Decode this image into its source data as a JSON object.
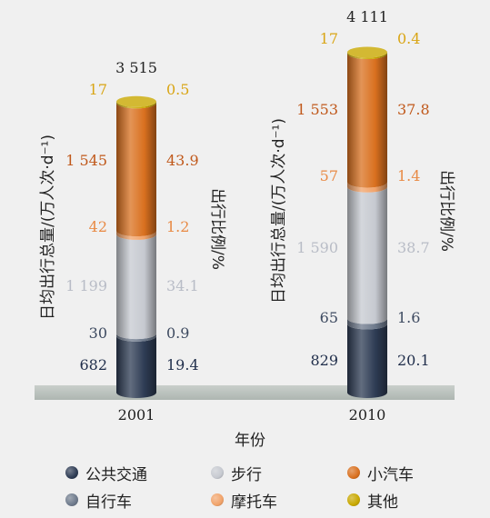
{
  "chart_data": {
    "type": "bar",
    "stacked": true,
    "shape": "cylinder",
    "categories": [
      "2001",
      "2010"
    ],
    "xlabel": "年份",
    "ylabel_left": "日均出行总量/(万人次·d⁻¹)",
    "ylabel_right": "出行比例/%",
    "totals": [
      "3 515",
      "4 111"
    ],
    "series": [
      {
        "name": "公共交通",
        "color": "#2e3c54",
        "label_color": "#1f2d4a",
        "values": [
          682,
          829
        ],
        "value_labels": [
          "682",
          "829"
        ],
        "percents": [
          19.4,
          20.1
        ],
        "percent_labels": [
          "19.4",
          "20.1"
        ]
      },
      {
        "name": "自行车",
        "color": "#6e7a8c",
        "label_color": "#3d4a60",
        "values": [
          30,
          65
        ],
        "value_labels": [
          "30",
          "65"
        ],
        "percents": [
          0.9,
          1.6
        ],
        "percent_labels": [
          "0.9",
          "1.6"
        ]
      },
      {
        "name": "步行",
        "color": "#c6c9d0",
        "label_color": "#b8bcc6",
        "values": [
          1199,
          1590
        ],
        "value_labels": [
          "1 199",
          "1 590"
        ],
        "percents": [
          34.1,
          38.7
        ],
        "percent_labels": [
          "34.1",
          "38.7"
        ]
      },
      {
        "name": "摩托车",
        "color": "#f1a36a",
        "label_color": "#e88a45",
        "values": [
          42,
          57
        ],
        "value_labels": [
          "42",
          "57"
        ],
        "percents": [
          1.2,
          1.4
        ],
        "percent_labels": [
          "1.2",
          "1.4"
        ]
      },
      {
        "name": "小汽车",
        "color": "#d9701f",
        "label_color": "#c0581a",
        "values": [
          1545,
          1553
        ],
        "value_labels": [
          "1 545",
          "1 553"
        ],
        "percents": [
          43.9,
          37.8
        ],
        "percent_labels": [
          "43.9",
          "37.8"
        ]
      },
      {
        "name": "其他",
        "color": "#c8a800",
        "label_color": "#d9a514",
        "values": [
          17,
          17
        ],
        "value_labels": [
          "17",
          "17"
        ],
        "percents": [
          0.5,
          0.4
        ],
        "percent_labels": [
          "0.5",
          "0.4"
        ]
      }
    ],
    "legend_order": [
      "公共交通",
      "步行",
      "小汽车",
      "自行车",
      "摩托车",
      "其他"
    ],
    "legend_placement": "bottom",
    "grid": false
  }
}
